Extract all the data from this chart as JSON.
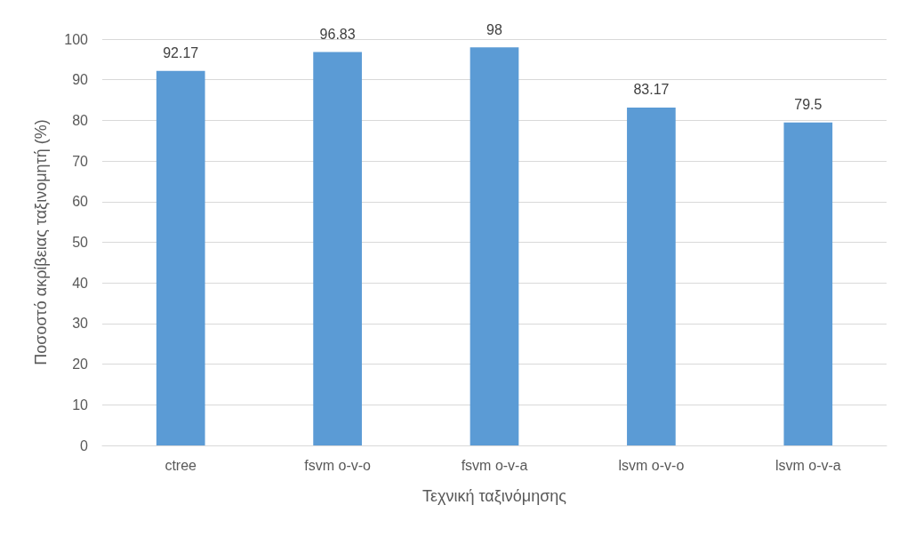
{
  "chart_data": {
    "type": "bar",
    "xlabel": "Τεχνική ταξινόμησης",
    "ylabel": "Ποσοστό ακρίβειας ταξινομητή (%)",
    "categories": [
      "ctree",
      "fsvm o-v-o",
      "fsvm o-v-a",
      "lsvm o-v-o",
      "lsvm o-v-a"
    ],
    "values": [
      92.17,
      96.83,
      98,
      83.17,
      79.5
    ],
    "color": "#5b9bd5",
    "ylim": [
      0,
      100
    ],
    "yticks": [
      0,
      10,
      20,
      30,
      40,
      50,
      60,
      70,
      80,
      90,
      100
    ],
    "grid": "y",
    "data_labels": true
  }
}
